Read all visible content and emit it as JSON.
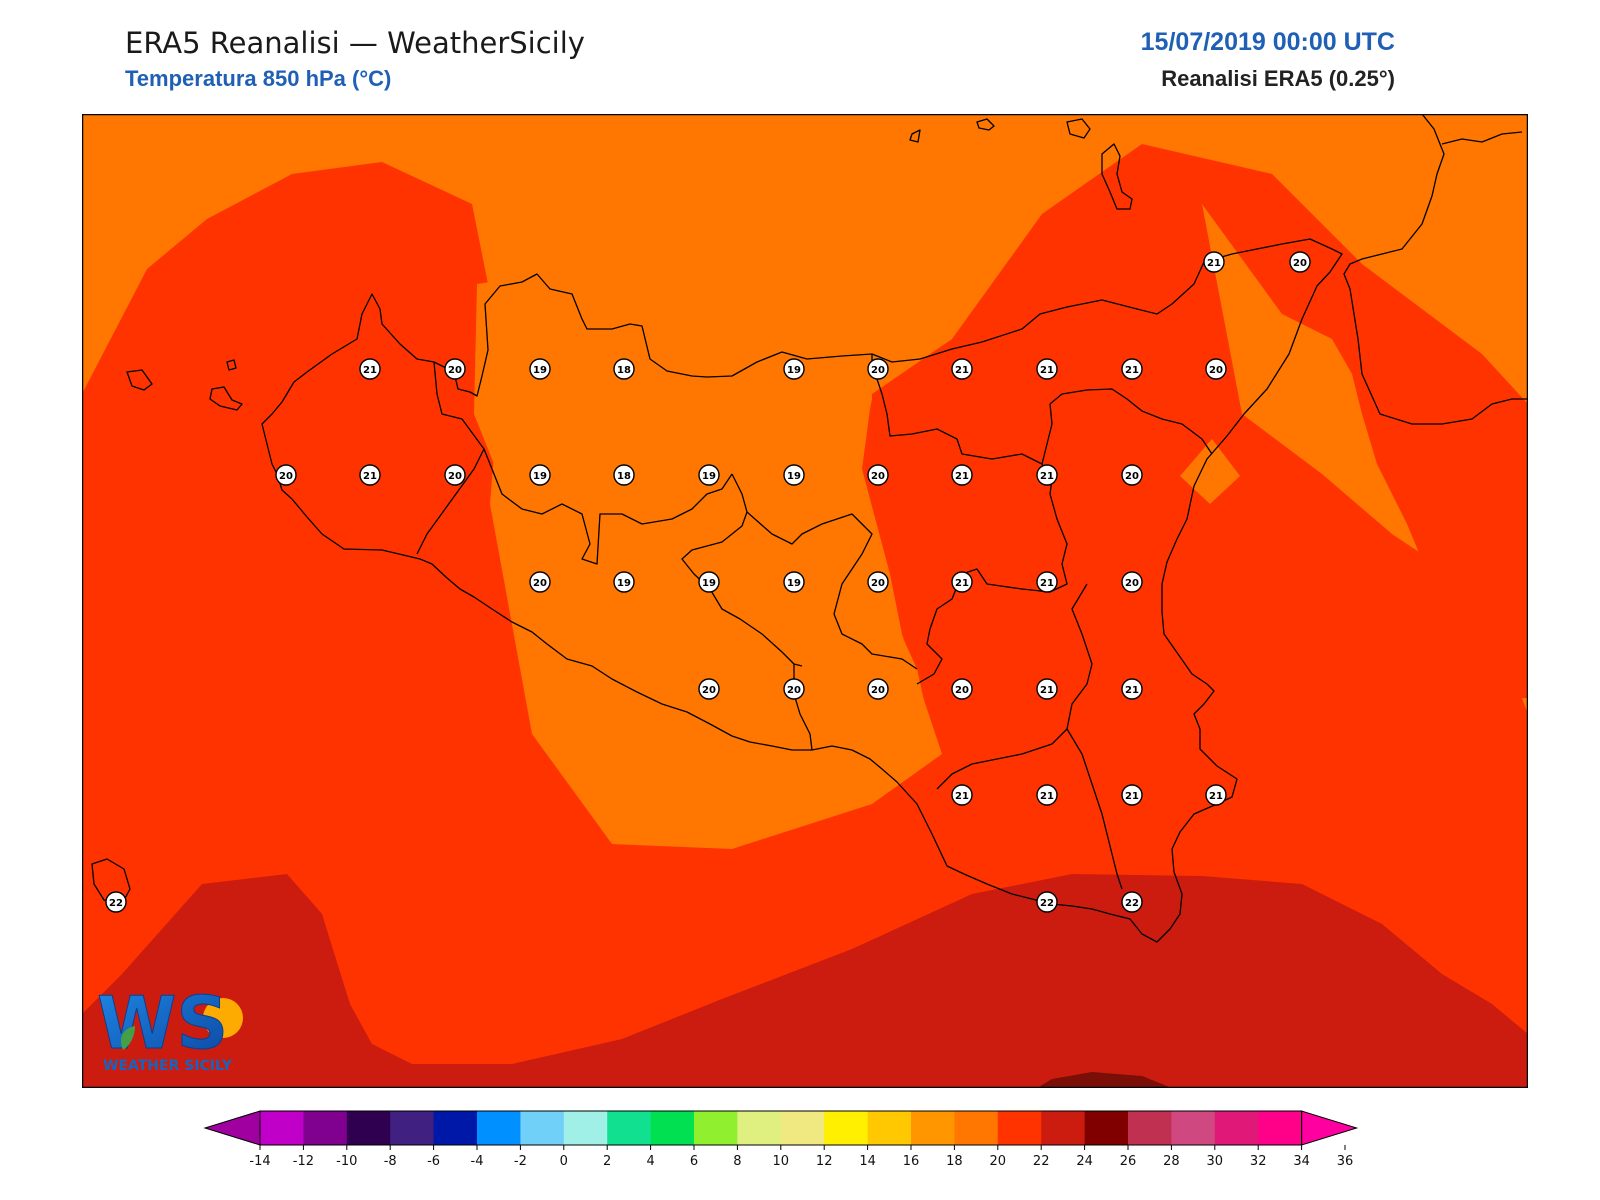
{
  "header": {
    "title": "ERA5 Reanalisi — WeatherSicily",
    "subtitle": "Temperatura 850 hPa (°C)",
    "datetime": "15/07/2019 00:00 UTC",
    "source": "Reanalisi ERA5 (0.25°)"
  },
  "logo": {
    "letters": "WS",
    "caption": "WEATHER SICILY"
  },
  "map": {
    "fill_colors": {
      "t18_20": "#ff7700",
      "t20_22": "#ff3300",
      "t22_24": "#cc1c10"
    },
    "stations": [
      {
        "value": "21"
      },
      {
        "value": "20"
      },
      {
        "value": "21"
      },
      {
        "value": "20"
      },
      {
        "value": "19"
      },
      {
        "value": "18"
      },
      {
        "value": "19"
      },
      {
        "value": "20"
      },
      {
        "value": "21"
      },
      {
        "value": "21"
      },
      {
        "value": "21"
      },
      {
        "value": "20"
      },
      {
        "value": "20"
      },
      {
        "value": "21"
      },
      {
        "value": "20"
      },
      {
        "value": "19"
      },
      {
        "value": "18"
      },
      {
        "value": "19"
      },
      {
        "value": "19"
      },
      {
        "value": "20"
      },
      {
        "value": "21"
      },
      {
        "value": "21"
      },
      {
        "value": "20"
      },
      {
        "value": "20"
      },
      {
        "value": "19"
      },
      {
        "value": "19"
      },
      {
        "value": "19"
      },
      {
        "value": "20"
      },
      {
        "value": "21"
      },
      {
        "value": "21"
      },
      {
        "value": "20"
      },
      {
        "value": "20"
      },
      {
        "value": "20"
      },
      {
        "value": "20"
      },
      {
        "value": "20"
      },
      {
        "value": "21"
      },
      {
        "value": "21"
      },
      {
        "value": "21"
      },
      {
        "value": "21"
      },
      {
        "value": "21"
      },
      {
        "value": "21"
      },
      {
        "value": "22"
      },
      {
        "value": "22"
      },
      {
        "value": "22"
      }
    ]
  },
  "colorbar": {
    "ticks": [
      "-14",
      "-12",
      "-10",
      "-8",
      "-6",
      "-4",
      "-2",
      "0",
      "2",
      "4",
      "6",
      "8",
      "10",
      "12",
      "14",
      "16",
      "18",
      "20",
      "22",
      "24",
      "26",
      "28",
      "30",
      "32",
      "34",
      "36"
    ],
    "low_extend_color": "#a000a0",
    "high_extend_color": "#ff00a0",
    "colors": [
      "#c000c8",
      "#800090",
      "#300050",
      "#402080",
      "#0018a8",
      "#0090ff",
      "#70d0f8",
      "#a0f0e8",
      "#10e090",
      "#00e050",
      "#90f030",
      "#e0f080",
      "#f0e880",
      "#fff000",
      "#ffc800",
      "#ff9600",
      "#ff7700",
      "#ff3300",
      "#cc1c10",
      "#800000",
      "#c03050",
      "#d04880",
      "#e01878",
      "#ff0088"
    ]
  }
}
